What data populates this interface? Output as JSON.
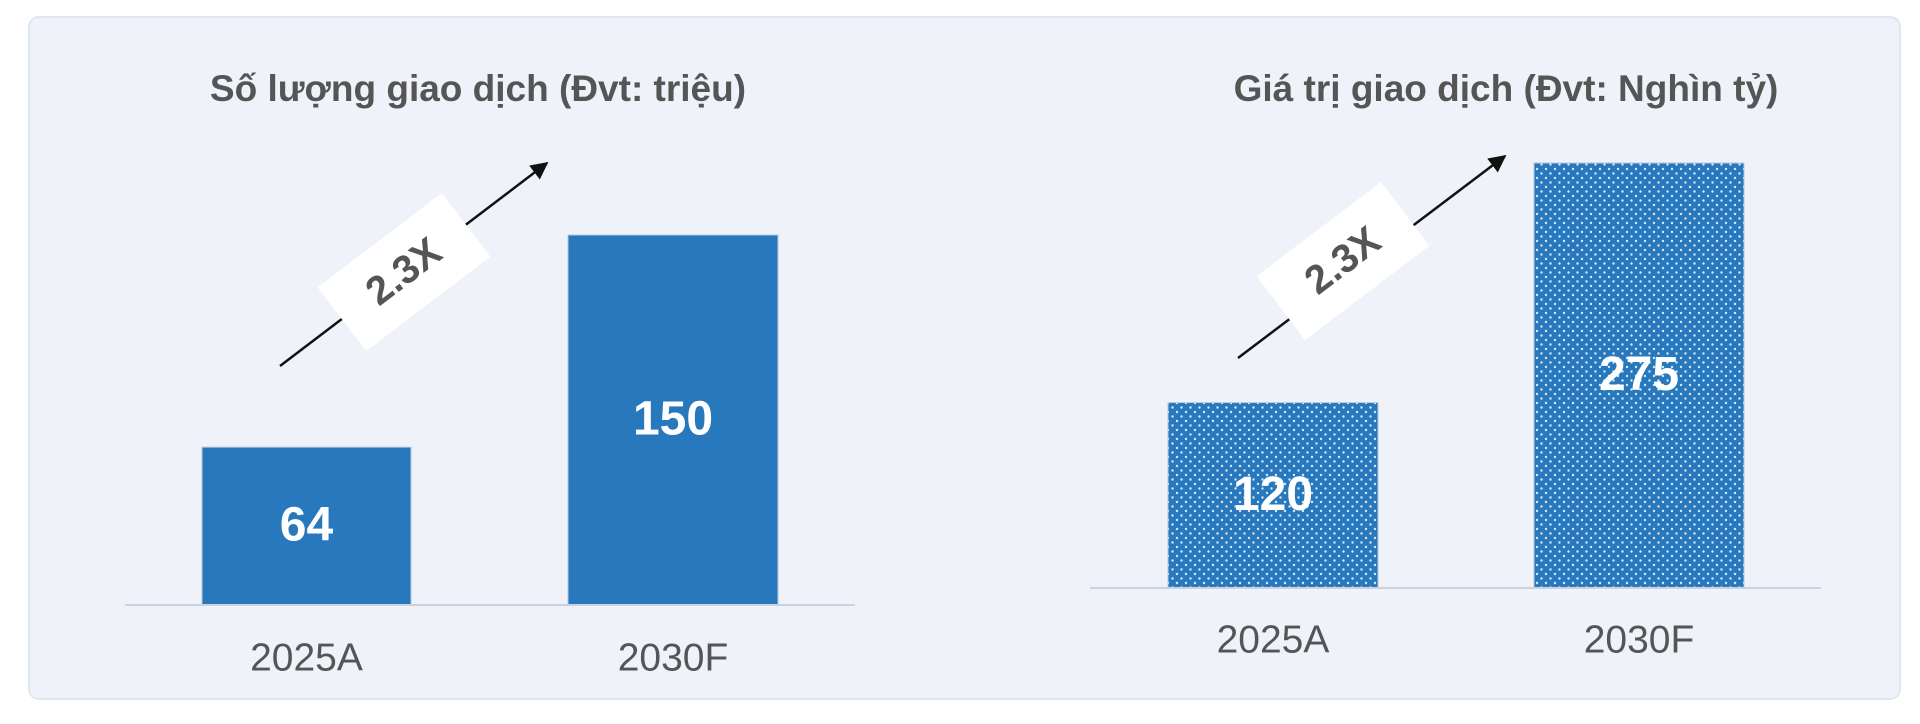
{
  "chart_data": [
    {
      "type": "bar",
      "title": "Số lượng giao dịch (Đvt: triệu)",
      "categories": [
        "2025A",
        "2030F"
      ],
      "values": [
        64,
        150
      ],
      "color": "#2878bd",
      "fill_pattern": "solid",
      "annotation": "2.3X"
    },
    {
      "type": "bar",
      "title": "Giá trị giao dịch (Đvt: Nghìn tỷ)",
      "categories": [
        "2025A",
        "2030F"
      ],
      "values": [
        120,
        275
      ],
      "color": "#2878bd",
      "fill_pattern": "dots",
      "annotation": "2.3X"
    }
  ]
}
